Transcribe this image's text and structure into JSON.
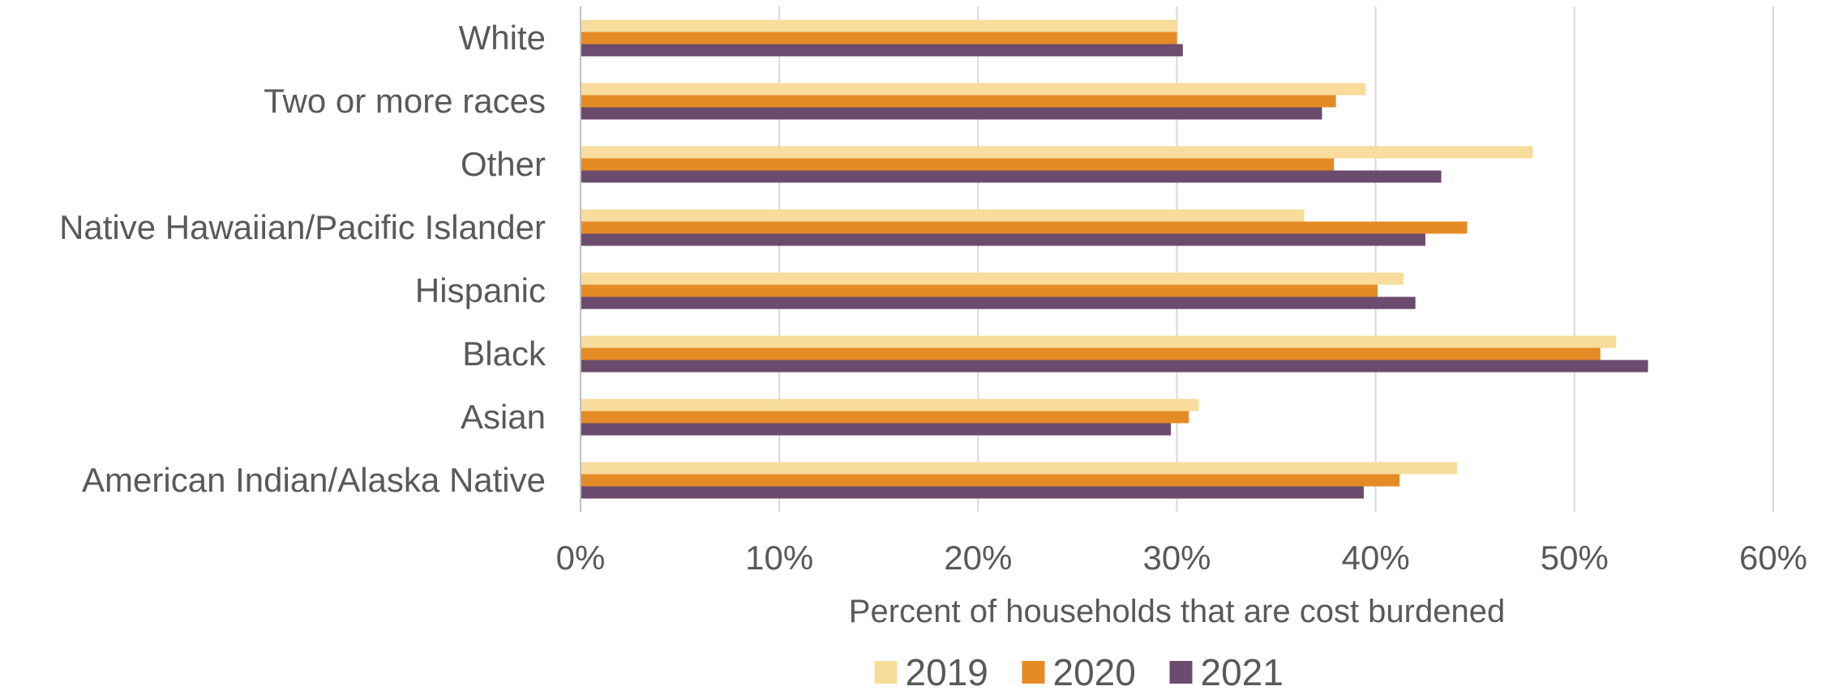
{
  "chart_data": {
    "type": "bar",
    "orientation": "horizontal",
    "title": "",
    "xlabel": "Percent of households that are cost burdened",
    "ylabel": "",
    "xlim": [
      0,
      60
    ],
    "x_ticks": [
      "0%",
      "10%",
      "20%",
      "30%",
      "40%",
      "50%",
      "60%"
    ],
    "grid": true,
    "legend_position": "bottom",
    "categories": [
      "American Indian/Alaska Native",
      "Asian",
      "Black",
      "Hispanic",
      "Native Hawaiian/Pacific Islander",
      "Other",
      "Two or more races",
      "White"
    ],
    "series": [
      {
        "name": "2019",
        "color": "#f8dc9c",
        "values": [
          44.1,
          31.1,
          52.1,
          41.4,
          36.4,
          47.9,
          39.5,
          30.0
        ]
      },
      {
        "name": "2020",
        "color": "#e58b25",
        "values": [
          41.2,
          30.6,
          51.3,
          40.1,
          44.6,
          37.9,
          38.0,
          30.0
        ]
      },
      {
        "name": "2021",
        "color": "#6b4b6e",
        "values": [
          39.4,
          29.7,
          53.7,
          42.0,
          42.5,
          43.3,
          37.3,
          30.3
        ]
      }
    ]
  }
}
